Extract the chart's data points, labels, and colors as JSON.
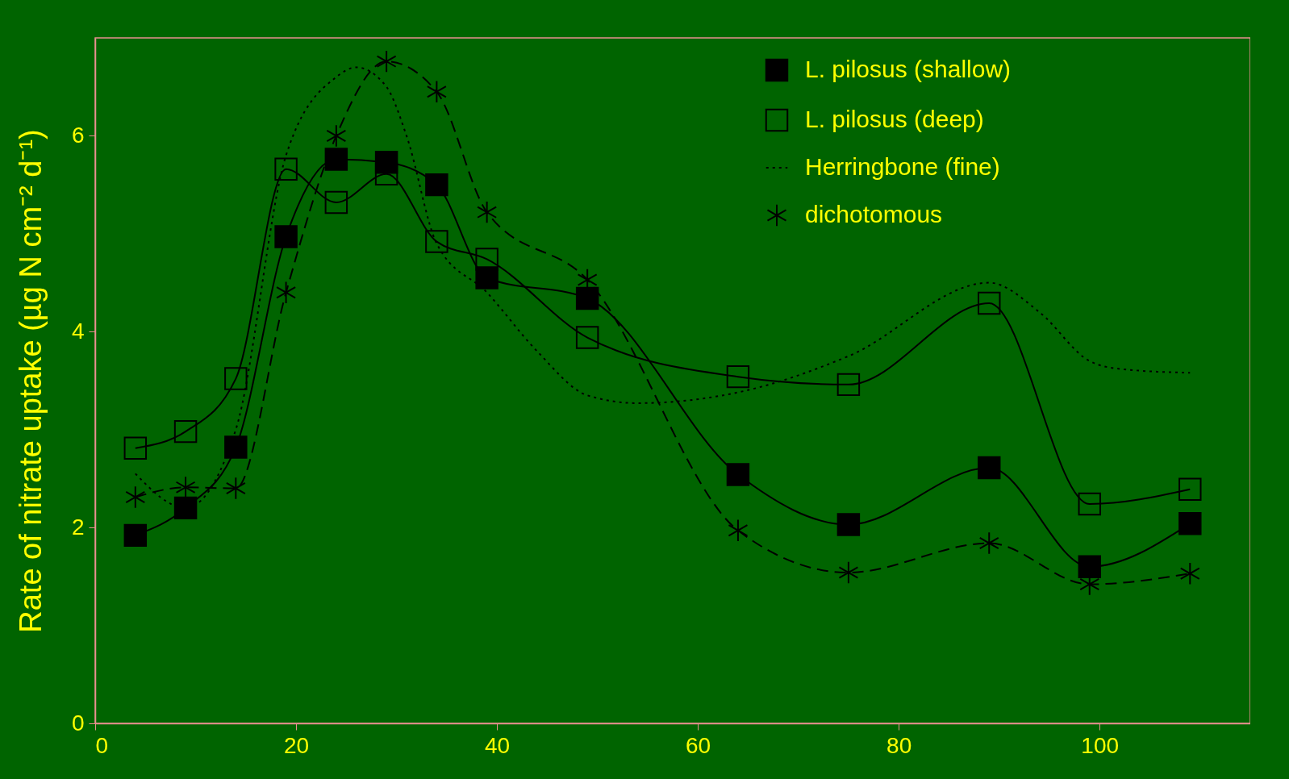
{
  "chart_data": {
    "type": "line",
    "ylabel": "Rate of nitrate uptake (µg N cm⁻² d⁻¹)",
    "xlim": [
      0,
      115
    ],
    "xticks": [
      0,
      20,
      40,
      60,
      80,
      100
    ],
    "ylim": [
      0,
      7
    ],
    "yticks": [
      0,
      2,
      4,
      6
    ],
    "grid": false,
    "legend": "top right",
    "series": [
      {
        "name": "L. pilosus (shallow)",
        "color": "#000000",
        "marker": "square",
        "line_style": "solid",
        "x": [
          4,
          9,
          14,
          19,
          24,
          29,
          34,
          39,
          49,
          64,
          75,
          89,
          99,
          109
        ],
        "values": [
          1.92,
          2.2,
          2.82,
          4.97,
          5.76,
          5.73,
          5.5,
          4.55,
          4.34,
          2.54,
          2.03,
          2.61,
          1.6,
          2.04
        ]
      },
      {
        "name": "L. pilosus (deep)",
        "color": "#000000",
        "marker": "square-open",
        "line_style": "solid",
        "x": [
          4,
          9,
          14,
          19,
          24,
          29,
          34,
          39,
          49,
          64,
          75,
          89,
          99,
          109
        ],
        "values": [
          2.81,
          2.98,
          3.52,
          5.66,
          5.32,
          5.61,
          4.92,
          4.74,
          3.94,
          3.54,
          3.46,
          4.29,
          2.24,
          2.39
        ]
      },
      {
        "name": "Herringbone (fine)",
        "color": "#000000",
        "marker": "none",
        "line_style": "dotted",
        "x": [
          4,
          9,
          14,
          19,
          24,
          26,
          29,
          31,
          34,
          39,
          44,
          49,
          54,
          64,
          75,
          89,
          94,
          99,
          102,
          109
        ],
        "values": [
          2.55,
          2.2,
          3.0,
          5.8,
          6.6,
          6.7,
          6.5,
          6.0,
          4.9,
          4.4,
          3.8,
          3.35,
          3.27,
          3.38,
          3.75,
          4.5,
          4.2,
          3.7,
          3.62,
          3.58
        ]
      },
      {
        "name": "dichotomous",
        "color": "#000000",
        "marker": "cross",
        "line_style": "dashed",
        "x": [
          4,
          9,
          14,
          19,
          24,
          29,
          34,
          39,
          49,
          64,
          75,
          89,
          99,
          109
        ],
        "values": [
          2.31,
          2.41,
          2.4,
          4.4,
          6.0,
          6.76,
          6.45,
          5.22,
          4.53,
          1.97,
          1.54,
          1.84,
          1.42,
          1.53
        ]
      }
    ]
  }
}
